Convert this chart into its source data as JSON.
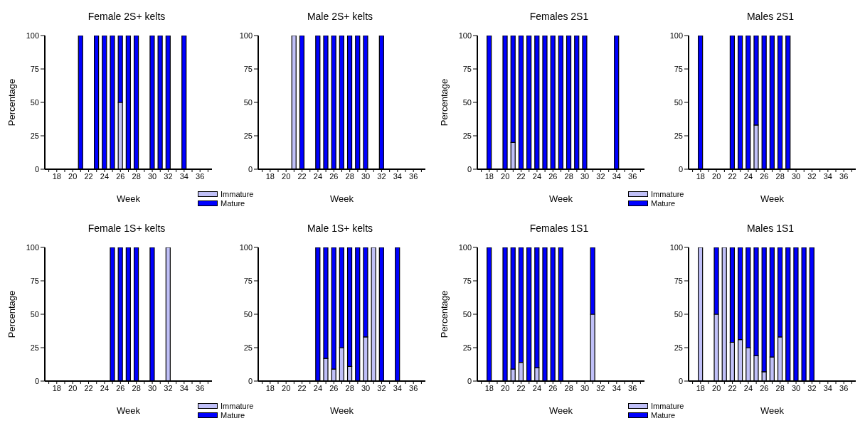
{
  "chart_data": [
    {
      "type": "bar",
      "title": "Female 2S+ kelts",
      "xlabel": "Week",
      "ylabel": "Percentage",
      "stacked": true,
      "categories": [
        null,
        "18",
        null,
        "20",
        null,
        "22",
        null,
        "24",
        null,
        "26",
        null,
        "28",
        null,
        "30",
        null,
        "32",
        null,
        "34",
        null,
        "36",
        null
      ],
      "ylim": [
        0,
        100
      ],
      "yticks": [
        0,
        25,
        50,
        75,
        100
      ],
      "series": [
        {
          "color": "#c0c0f8",
          "values": [
            null,
            null,
            null,
            null,
            null,
            null,
            null,
            null,
            null,
            50,
            null,
            null,
            null,
            null,
            null,
            null,
            null,
            null,
            null,
            null,
            null
          ]
        },
        {
          "color": "#0000ff",
          "values": [
            null,
            null,
            null,
            null,
            100,
            null,
            100,
            100,
            100,
            50,
            100,
            100,
            null,
            100,
            100,
            100,
            null,
            100,
            null,
            null,
            null
          ]
        }
      ]
    },
    {
      "type": "bar",
      "title": "Male 2S+ kelts",
      "xlabel": "Week",
      "legend": "bottom left",
      "stacked": true,
      "categories": [
        null,
        "18",
        null,
        "20",
        null,
        "22",
        null,
        "24",
        null,
        "26",
        null,
        "28",
        null,
        "30",
        null,
        "32",
        null,
        "34",
        null,
        "36",
        null
      ],
      "ylim": [
        0,
        100
      ],
      "yticks": [
        0,
        25,
        50,
        75,
        100
      ],
      "series": [
        {
          "name": "Immature",
          "color": "#c0c0f8",
          "values": [
            null,
            null,
            null,
            null,
            100,
            null,
            null,
            null,
            null,
            null,
            null,
            null,
            null,
            null,
            null,
            null,
            null,
            null,
            null,
            null,
            null
          ]
        },
        {
          "name": "Mature",
          "color": "#0000ff",
          "values": [
            null,
            null,
            null,
            null,
            null,
            100,
            null,
            100,
            100,
            100,
            100,
            100,
            100,
            100,
            null,
            100,
            null,
            null,
            null,
            null,
            null
          ]
        }
      ]
    },
    {
      "type": "bar",
      "title": "Females 2S1",
      "xlabel": "Week",
      "ylabel": "Percentage",
      "stacked": true,
      "categories": [
        null,
        "18",
        null,
        "20",
        null,
        "22",
        null,
        "24",
        null,
        "26",
        null,
        "28",
        null,
        "30",
        null,
        "32",
        null,
        "34",
        null,
        "36",
        null
      ],
      "ylim": [
        0,
        100
      ],
      "yticks": [
        0,
        25,
        50,
        75,
        100
      ],
      "series": [
        {
          "color": "#c0c0f8",
          "values": [
            null,
            null,
            null,
            null,
            20,
            null,
            null,
            null,
            null,
            null,
            null,
            null,
            null,
            null,
            null,
            null,
            null,
            null,
            null,
            null,
            null
          ]
        },
        {
          "color": "#0000ff",
          "values": [
            null,
            100,
            null,
            100,
            80,
            100,
            100,
            100,
            100,
            100,
            100,
            100,
            100,
            100,
            null,
            null,
            null,
            100,
            null,
            null,
            null
          ]
        }
      ]
    },
    {
      "type": "bar",
      "title": "Males 2S1",
      "xlabel": "Week",
      "legend": "bottom left",
      "stacked": true,
      "categories": [
        null,
        "18",
        null,
        "20",
        null,
        "22",
        null,
        "24",
        null,
        "26",
        null,
        "28",
        null,
        "30",
        null,
        "32",
        null,
        "34",
        null,
        "36",
        null
      ],
      "ylim": [
        0,
        100
      ],
      "yticks": [
        0,
        25,
        50,
        75,
        100
      ],
      "series": [
        {
          "name": "Immature",
          "color": "#c0c0f8",
          "values": [
            null,
            null,
            null,
            null,
            null,
            null,
            null,
            null,
            33,
            null,
            null,
            null,
            null,
            null,
            null,
            null,
            null,
            null,
            null,
            null,
            null
          ]
        },
        {
          "name": "Mature",
          "color": "#0000ff",
          "values": [
            null,
            100,
            null,
            null,
            null,
            100,
            100,
            100,
            67,
            100,
            100,
            100,
            100,
            null,
            null,
            null,
            null,
            null,
            null,
            null,
            null
          ]
        }
      ]
    },
    {
      "type": "bar",
      "title": "Female 1S+ kelts",
      "xlabel": "Week",
      "ylabel": "Percentage",
      "stacked": true,
      "categories": [
        null,
        "18",
        null,
        "20",
        null,
        "22",
        null,
        "24",
        null,
        "26",
        null,
        "28",
        null,
        "30",
        null,
        "32",
        null,
        "34",
        null,
        "36",
        null
      ],
      "ylim": [
        0,
        100
      ],
      "yticks": [
        0,
        25,
        50,
        75,
        100
      ],
      "series": [
        {
          "color": "#c0c0f8",
          "values": [
            null,
            null,
            null,
            null,
            null,
            null,
            null,
            null,
            null,
            null,
            null,
            null,
            null,
            null,
            null,
            100,
            null,
            null,
            null,
            null,
            null
          ]
        },
        {
          "color": "#0000ff",
          "values": [
            null,
            null,
            null,
            null,
            null,
            null,
            null,
            null,
            100,
            100,
            100,
            100,
            null,
            100,
            null,
            null,
            null,
            null,
            null,
            null,
            null
          ]
        }
      ]
    },
    {
      "type": "bar",
      "title": "Male 1S+ kelts",
      "xlabel": "Week",
      "legend": "bottom left",
      "stacked": true,
      "categories": [
        null,
        "18",
        null,
        "20",
        null,
        "22",
        null,
        "24",
        null,
        "26",
        null,
        "28",
        null,
        "30",
        null,
        "32",
        null,
        "34",
        null,
        "36",
        null
      ],
      "ylim": [
        0,
        100
      ],
      "yticks": [
        0,
        25,
        50,
        75,
        100
      ],
      "series": [
        {
          "name": "Immature",
          "color": "#c0c0f8",
          "values": [
            null,
            null,
            null,
            null,
            null,
            null,
            null,
            null,
            17,
            9,
            25,
            11,
            null,
            33,
            100,
            null,
            null,
            null,
            null,
            null,
            null
          ]
        },
        {
          "name": "Mature",
          "color": "#0000ff",
          "values": [
            null,
            null,
            null,
            null,
            null,
            null,
            null,
            100,
            83,
            91,
            75,
            89,
            100,
            67,
            null,
            100,
            null,
            100,
            null,
            null,
            null
          ]
        }
      ]
    },
    {
      "type": "bar",
      "title": "Females 1S1",
      "xlabel": "Week",
      "ylabel": "Percentage",
      "stacked": true,
      "categories": [
        null,
        "18",
        null,
        "20",
        null,
        "22",
        null,
        "24",
        null,
        "26",
        null,
        "28",
        null,
        "30",
        null,
        "32",
        null,
        "34",
        null,
        "36",
        null
      ],
      "ylim": [
        0,
        100
      ],
      "yticks": [
        0,
        25,
        50,
        75,
        100
      ],
      "series": [
        {
          "color": "#c0c0f8",
          "values": [
            null,
            null,
            null,
            null,
            9,
            14,
            null,
            10,
            null,
            null,
            null,
            null,
            null,
            null,
            50,
            null,
            null,
            null,
            null,
            null,
            null
          ]
        },
        {
          "color": "#0000ff",
          "values": [
            null,
            100,
            null,
            100,
            91,
            86,
            100,
            90,
            100,
            100,
            100,
            null,
            null,
            null,
            50,
            null,
            null,
            null,
            null,
            null,
            null
          ]
        }
      ]
    },
    {
      "type": "bar",
      "title": "Males 1S1",
      "xlabel": "Week",
      "legend": "bottom left",
      "stacked": true,
      "categories": [
        null,
        "18",
        null,
        "20",
        null,
        "22",
        null,
        "24",
        null,
        "26",
        null,
        "28",
        null,
        "30",
        null,
        "32",
        null,
        "34",
        null,
        "36",
        null
      ],
      "ylim": [
        0,
        100
      ],
      "yticks": [
        0,
        25,
        50,
        75,
        100
      ],
      "series": [
        {
          "name": "Immature",
          "color": "#c0c0f8",
          "values": [
            null,
            100,
            null,
            50,
            100,
            29,
            31,
            25,
            19,
            7,
            18,
            33,
            null,
            null,
            null,
            null,
            null,
            null,
            null,
            null,
            null
          ]
        },
        {
          "name": "Mature",
          "color": "#0000ff",
          "values": [
            null,
            null,
            null,
            50,
            null,
            71,
            69,
            75,
            81,
            93,
            82,
            67,
            100,
            100,
            100,
            100,
            null,
            null,
            null,
            null,
            null
          ]
        }
      ]
    }
  ]
}
